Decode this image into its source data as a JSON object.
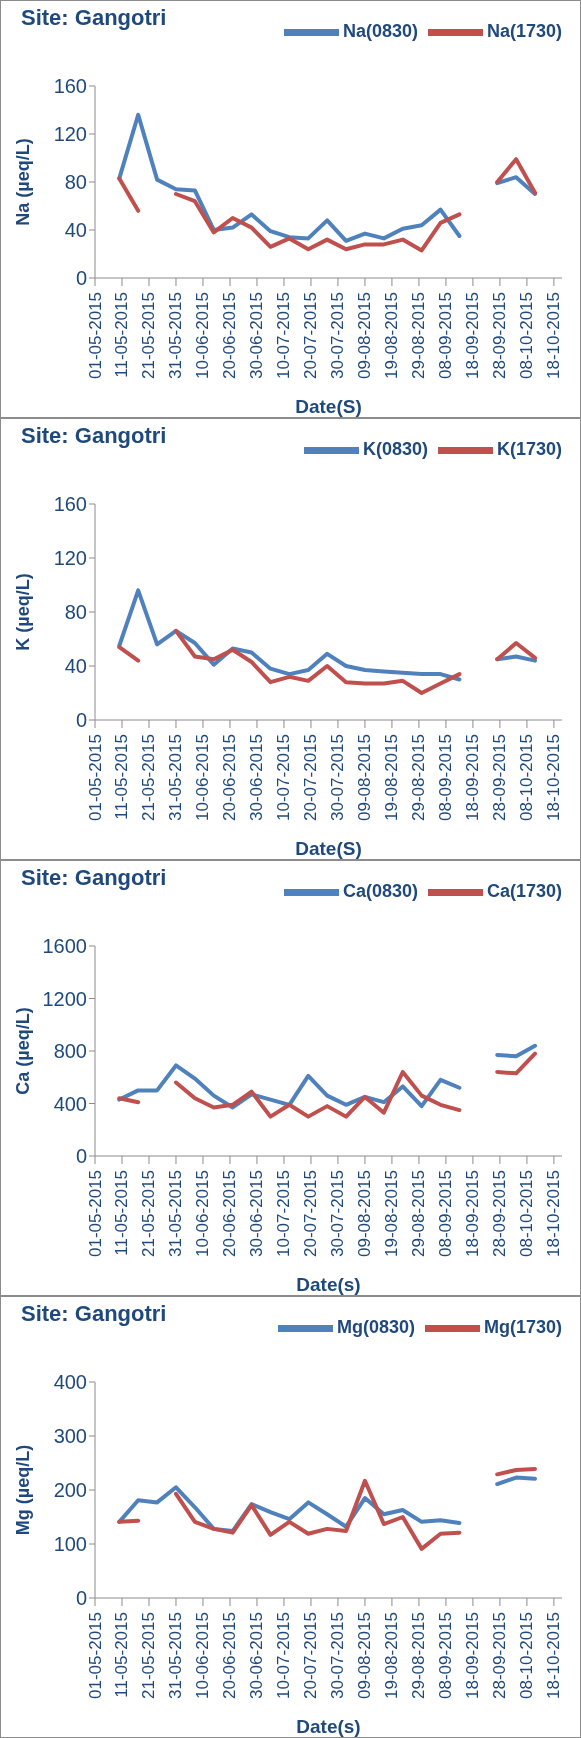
{
  "chart_data": [
    {
      "type": "line",
      "title": "Site: Gangotri",
      "ylabel": "Na (µeq/L)",
      "xlabel": "Date(S)",
      "legend": "top right",
      "marker": "none",
      "line_style": "solid",
      "x": [
        "2015-05-10",
        "2015-05-17",
        "2015-05-24",
        "2015-05-31",
        "2015-06-07",
        "2015-06-14",
        "2015-06-21",
        "2015-06-28",
        "2015-07-05",
        "2015-07-12",
        "2015-07-19",
        "2015-07-26",
        "2015-08-02",
        "2015-08-09",
        "2015-08-16",
        "2015-08-23",
        "2015-08-30",
        "2015-09-06",
        "2015-09-13",
        "2015-09-20",
        "2015-09-27",
        "2015-10-04",
        "2015-10-11"
      ],
      "xlim": [
        "2015-05-01",
        "2015-10-21"
      ],
      "xticks": [
        {
          "value": "2015-05-01",
          "label": "01-05-2015"
        },
        {
          "value": "2015-05-11",
          "label": "11-05-2015"
        },
        {
          "value": "2015-05-21",
          "label": "21-05-2015"
        },
        {
          "value": "2015-05-31",
          "label": "31-05-2015"
        },
        {
          "value": "2015-06-10",
          "label": "10-06-2015"
        },
        {
          "value": "2015-06-20",
          "label": "20-06-2015"
        },
        {
          "value": "2015-06-30",
          "label": "30-06-2015"
        },
        {
          "value": "2015-07-10",
          "label": "10-07-2015"
        },
        {
          "value": "2015-07-20",
          "label": "20-07-2015"
        },
        {
          "value": "2015-07-30",
          "label": "30-07-2015"
        },
        {
          "value": "2015-08-09",
          "label": "09-08-2015"
        },
        {
          "value": "2015-08-19",
          "label": "19-08-2015"
        },
        {
          "value": "2015-08-29",
          "label": "29-08-2015"
        },
        {
          "value": "2015-09-08",
          "label": "08-09-2015"
        },
        {
          "value": "2015-09-18",
          "label": "18-09-2015"
        },
        {
          "value": "2015-09-28",
          "label": "28-09-2015"
        },
        {
          "value": "2015-10-08",
          "label": "08-10-2015"
        },
        {
          "value": "2015-10-18",
          "label": "18-10-2015"
        }
      ],
      "ylim": [
        0,
        160
      ],
      "yticks": [
        0,
        40,
        80,
        120,
        160
      ],
      "series": [
        {
          "name": "Na(0830)",
          "color": "#4f81bd",
          "values": [
            83,
            136,
            82,
            74,
            73,
            40,
            42,
            53,
            39,
            34,
            33,
            48,
            31,
            37,
            33,
            41,
            44,
            57,
            35,
            null,
            79,
            84,
            70
          ]
        },
        {
          "name": "Na(1730)",
          "color": "#c0504d",
          "values": [
            83,
            56,
            null,
            70,
            64,
            38,
            50,
            42,
            26,
            33,
            24,
            32,
            24,
            28,
            28,
            32,
            23,
            46,
            53,
            null,
            80,
            99,
            71
          ]
        }
      ]
    },
    {
      "type": "line",
      "title": "Site: Gangotri",
      "ylabel": "K (µeq/L)",
      "xlabel": "Date(S)",
      "legend": "top right",
      "marker": "none",
      "line_style": "solid",
      "x": [
        "2015-05-10",
        "2015-05-17",
        "2015-05-24",
        "2015-05-31",
        "2015-06-07",
        "2015-06-14",
        "2015-06-21",
        "2015-06-28",
        "2015-07-05",
        "2015-07-12",
        "2015-07-19",
        "2015-07-26",
        "2015-08-02",
        "2015-08-09",
        "2015-08-16",
        "2015-08-23",
        "2015-08-30",
        "2015-09-06",
        "2015-09-13",
        "2015-09-20",
        "2015-09-27",
        "2015-10-04",
        "2015-10-11"
      ],
      "xlim": [
        "2015-05-01",
        "2015-10-21"
      ],
      "xticks": [
        {
          "value": "2015-05-01",
          "label": "01-05-2015"
        },
        {
          "value": "2015-05-11",
          "label": "11-05-2015"
        },
        {
          "value": "2015-05-21",
          "label": "21-05-2015"
        },
        {
          "value": "2015-05-31",
          "label": "31-05-2015"
        },
        {
          "value": "2015-06-10",
          "label": "10-06-2015"
        },
        {
          "value": "2015-06-20",
          "label": "20-06-2015"
        },
        {
          "value": "2015-06-30",
          "label": "30-06-2015"
        },
        {
          "value": "2015-07-10",
          "label": "10-07-2015"
        },
        {
          "value": "2015-07-20",
          "label": "20-07-2015"
        },
        {
          "value": "2015-07-30",
          "label": "30-07-2015"
        },
        {
          "value": "2015-08-09",
          "label": "09-08-2015"
        },
        {
          "value": "2015-08-19",
          "label": "19-08-2015"
        },
        {
          "value": "2015-08-29",
          "label": "29-08-2015"
        },
        {
          "value": "2015-09-08",
          "label": "08-09-2015"
        },
        {
          "value": "2015-09-18",
          "label": "18-09-2015"
        },
        {
          "value": "2015-09-28",
          "label": "28-09-2015"
        },
        {
          "value": "2015-10-08",
          "label": "08-10-2015"
        },
        {
          "value": "2015-10-18",
          "label": "18-10-2015"
        }
      ],
      "ylim": [
        0,
        160
      ],
      "yticks": [
        0,
        40,
        80,
        120,
        160
      ],
      "series": [
        {
          "name": "K(0830)",
          "color": "#4f81bd",
          "values": [
            55,
            96,
            56,
            66,
            57,
            41,
            53,
            50,
            38,
            34,
            37,
            49,
            40,
            37,
            36,
            35,
            34,
            34,
            30,
            null,
            45,
            47,
            44
          ]
        },
        {
          "name": "K(1730)",
          "color": "#c0504d",
          "values": [
            54,
            44,
            null,
            66,
            47,
            45,
            52,
            43,
            28,
            32,
            29,
            40,
            28,
            27,
            27,
            29,
            20,
            27,
            34,
            null,
            45,
            57,
            46
          ]
        }
      ]
    },
    {
      "type": "line",
      "title": "Site: Gangotri",
      "ylabel": "Ca (µeq/L)",
      "xlabel": "Date(s)",
      "legend": "top right",
      "marker": "none",
      "line_style": "solid",
      "x": [
        "2015-05-10",
        "2015-05-17",
        "2015-05-24",
        "2015-05-31",
        "2015-06-07",
        "2015-06-14",
        "2015-06-21",
        "2015-06-28",
        "2015-07-05",
        "2015-07-12",
        "2015-07-19",
        "2015-07-26",
        "2015-08-02",
        "2015-08-09",
        "2015-08-16",
        "2015-08-23",
        "2015-08-30",
        "2015-09-06",
        "2015-09-13",
        "2015-09-20",
        "2015-09-27",
        "2015-10-04",
        "2015-10-11"
      ],
      "xlim": [
        "2015-05-01",
        "2015-10-21"
      ],
      "xticks": [
        {
          "value": "2015-05-01",
          "label": "01-05-2015"
        },
        {
          "value": "2015-05-11",
          "label": "11-05-2015"
        },
        {
          "value": "2015-05-21",
          "label": "21-05-2015"
        },
        {
          "value": "2015-05-31",
          "label": "31-05-2015"
        },
        {
          "value": "2015-06-10",
          "label": "10-06-2015"
        },
        {
          "value": "2015-06-20",
          "label": "20-06-2015"
        },
        {
          "value": "2015-06-30",
          "label": "30-06-2015"
        },
        {
          "value": "2015-07-10",
          "label": "10-07-2015"
        },
        {
          "value": "2015-07-20",
          "label": "20-07-2015"
        },
        {
          "value": "2015-07-30",
          "label": "30-07-2015"
        },
        {
          "value": "2015-08-09",
          "label": "09-08-2015"
        },
        {
          "value": "2015-08-19",
          "label": "19-08-2015"
        },
        {
          "value": "2015-08-29",
          "label": "29-08-2015"
        },
        {
          "value": "2015-09-08",
          "label": "08-09-2015"
        },
        {
          "value": "2015-09-18",
          "label": "18-09-2015"
        },
        {
          "value": "2015-09-28",
          "label": "28-09-2015"
        },
        {
          "value": "2015-10-08",
          "label": "08-10-2015"
        },
        {
          "value": "2015-10-18",
          "label": "18-10-2015"
        }
      ],
      "ylim": [
        0,
        1600
      ],
      "yticks": [
        0,
        400,
        800,
        1200,
        1600
      ],
      "series": [
        {
          "name": "Ca(0830)",
          "color": "#4f81bd",
          "values": [
            430,
            500,
            500,
            690,
            590,
            460,
            370,
            470,
            430,
            390,
            610,
            460,
            390,
            450,
            410,
            530,
            380,
            580,
            520,
            null,
            770,
            760,
            840
          ]
        },
        {
          "name": "Ca(1730)",
          "color": "#c0504d",
          "values": [
            440,
            410,
            null,
            560,
            440,
            370,
            390,
            490,
            300,
            390,
            300,
            380,
            300,
            450,
            330,
            640,
            460,
            390,
            350,
            null,
            640,
            630,
            780
          ]
        }
      ]
    },
    {
      "type": "line",
      "title": "Site: Gangotri",
      "ylabel": "Mg (µeq/L)",
      "xlabel": "Date(s)",
      "legend": "top right",
      "marker": "none",
      "line_style": "solid",
      "x": [
        "2015-05-10",
        "2015-05-17",
        "2015-05-24",
        "2015-05-31",
        "2015-06-07",
        "2015-06-14",
        "2015-06-21",
        "2015-06-28",
        "2015-07-05",
        "2015-07-12",
        "2015-07-19",
        "2015-07-26",
        "2015-08-02",
        "2015-08-09",
        "2015-08-16",
        "2015-08-23",
        "2015-08-30",
        "2015-09-06",
        "2015-09-13",
        "2015-09-20",
        "2015-09-27",
        "2015-10-04",
        "2015-10-11"
      ],
      "xlim": [
        "2015-05-01",
        "2015-10-21"
      ],
      "xticks": [
        {
          "value": "2015-05-01",
          "label": "01-05-2015"
        },
        {
          "value": "2015-05-11",
          "label": "11-05-2015"
        },
        {
          "value": "2015-05-21",
          "label": "21-05-2015"
        },
        {
          "value": "2015-05-31",
          "label": "31-05-2015"
        },
        {
          "value": "2015-06-10",
          "label": "10-06-2015"
        },
        {
          "value": "2015-06-20",
          "label": "20-06-2015"
        },
        {
          "value": "2015-06-30",
          "label": "30-06-2015"
        },
        {
          "value": "2015-07-10",
          "label": "10-07-2015"
        },
        {
          "value": "2015-07-20",
          "label": "20-07-2015"
        },
        {
          "value": "2015-07-30",
          "label": "30-07-2015"
        },
        {
          "value": "2015-08-09",
          "label": "09-08-2015"
        },
        {
          "value": "2015-08-19",
          "label": "19-08-2015"
        },
        {
          "value": "2015-08-29",
          "label": "29-08-2015"
        },
        {
          "value": "2015-09-08",
          "label": "08-09-2015"
        },
        {
          "value": "2015-09-18",
          "label": "18-09-2015"
        },
        {
          "value": "2015-09-28",
          "label": "28-09-2015"
        },
        {
          "value": "2015-10-08",
          "label": "08-10-2015"
        },
        {
          "value": "2015-10-18",
          "label": "18-10-2015"
        }
      ],
      "ylim": [
        0,
        400
      ],
      "yticks": [
        0,
        100,
        200,
        300,
        400
      ],
      "series": [
        {
          "name": "Mg(0830)",
          "color": "#4f81bd",
          "values": [
            141,
            181,
            177,
            205,
            168,
            128,
            124,
            174,
            159,
            146,
            177,
            155,
            132,
            185,
            155,
            163,
            141,
            144,
            139,
            null,
            211,
            223,
            221
          ]
        },
        {
          "name": "Mg(1730)",
          "color": "#c0504d",
          "values": [
            141,
            143,
            null,
            193,
            141,
            128,
            121,
            172,
            117,
            141,
            119,
            128,
            124,
            217,
            137,
            150,
            91,
            119,
            121,
            null,
            229,
            237,
            239
          ]
        }
      ]
    }
  ]
}
